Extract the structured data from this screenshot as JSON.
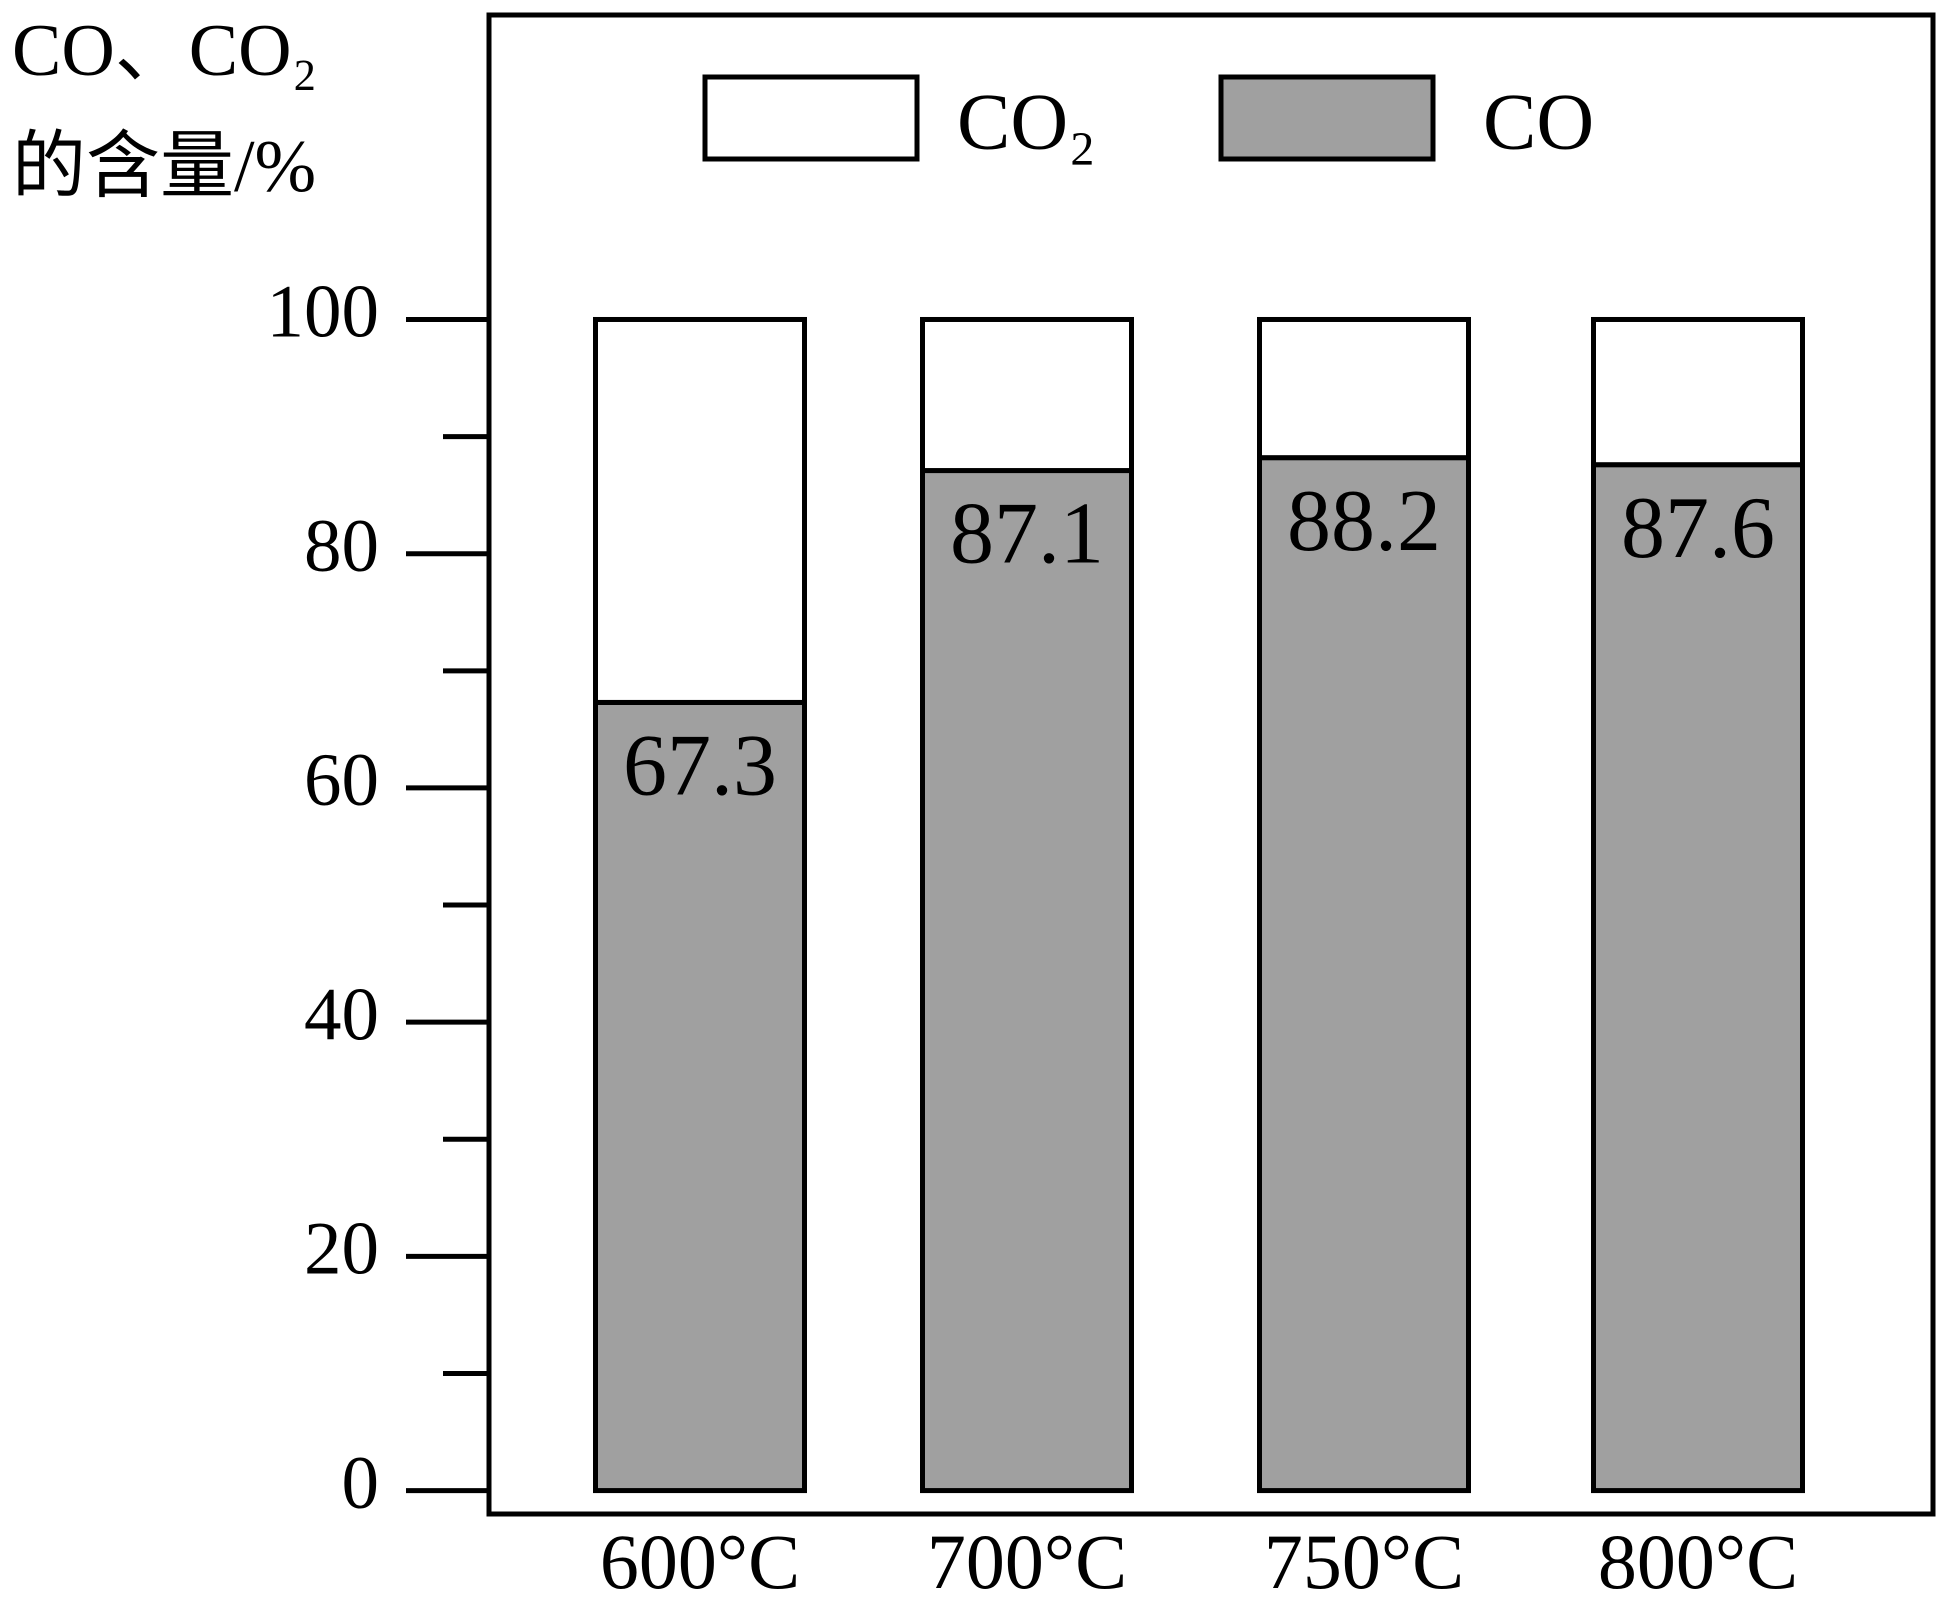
{
  "chart_data": {
    "type": "stacked_bar",
    "y_label": [
      "CO、CO₂",
      "的含量/%"
    ],
    "categories": [
      "600°C",
      "700°C",
      "750°C",
      "800°C"
    ],
    "series": [
      {
        "name": "CO",
        "color": "#a0a0a0",
        "values": [
          67.3,
          87.1,
          88.2,
          87.6
        ]
      },
      {
        "name": "CO₂",
        "color": "#ffffff",
        "values": [
          32.7,
          12.9,
          11.8,
          12.4
        ]
      }
    ],
    "ylim": [
      -2,
      126
    ],
    "yticks": [
      0,
      20,
      40,
      60,
      80,
      100
    ],
    "minor_yticks": [
      10,
      30,
      50,
      70,
      90
    ],
    "legend": "top"
  }
}
